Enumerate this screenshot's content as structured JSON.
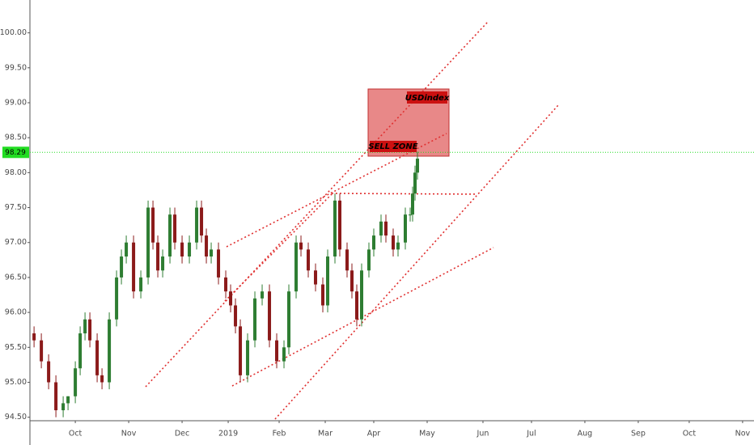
{
  "chart_data": {
    "type": "candlestick",
    "annotations": [
      "USDindex",
      "SELL ZONE"
    ],
    "price_line": 98.29,
    "xlim": [
      -18.7,
      279.7
    ],
    "xticks": [
      {
        "value": 0,
        "label": "Oct"
      },
      {
        "value": 22,
        "label": "Nov"
      },
      {
        "value": 44,
        "label": "Dec"
      },
      {
        "value": 63,
        "label": "2019"
      },
      {
        "value": 84,
        "label": "Feb"
      },
      {
        "value": 103,
        "label": "Mar"
      },
      {
        "value": 123,
        "label": "Apr"
      },
      {
        "value": 145,
        "label": "May"
      },
      {
        "value": 168,
        "label": "Jun"
      },
      {
        "value": 188,
        "label": "Jul"
      },
      {
        "value": 210,
        "label": "Aug"
      },
      {
        "value": 232,
        "label": "Sep"
      },
      {
        "value": 253,
        "label": "Oct"
      },
      {
        "value": 275,
        "label": "Nov"
      }
    ],
    "ylim": [
      94.45,
      100.47
    ],
    "yticks": [
      {
        "value": 94.5,
        "label": "94.50"
      },
      {
        "value": 95,
        "label": "95.00"
      },
      {
        "value": 95.5,
        "label": "95.50"
      },
      {
        "value": 96,
        "label": "96.00"
      },
      {
        "value": 96.5,
        "label": "96.50"
      },
      {
        "value": 97,
        "label": "97.00"
      },
      {
        "value": 97.5,
        "label": "97.50"
      },
      {
        "value": 98,
        "label": "98.00"
      },
      {
        "value": 98.5,
        "label": "98.50"
      },
      {
        "value": 99,
        "label": "99.00"
      },
      {
        "value": 99.5,
        "label": "99.50"
      },
      {
        "value": 100,
        "label": "100.00"
      }
    ],
    "grid": false,
    "up_color": "#2e7d32",
    "down_color": "#8b1a1a",
    "price_line_color": "#22dd22",
    "zone_color": "#e06060",
    "x": [
      -17,
      -14,
      -11,
      -8,
      -5,
      -3,
      0,
      2,
      4,
      6,
      9,
      11,
      14,
      17,
      19,
      21,
      24,
      27,
      30,
      32,
      34,
      36,
      39,
      41,
      44,
      47,
      50,
      52,
      54,
      56,
      59,
      62,
      64,
      66,
      68,
      71,
      74,
      77,
      80,
      83,
      86,
      88,
      91,
      93,
      96,
      99,
      102,
      104,
      107,
      109,
      112,
      114,
      116,
      118,
      121,
      123,
      126,
      128,
      131,
      133,
      136,
      138,
      139,
      140,
      141
    ],
    "open": [
      95.7,
      95.6,
      95.3,
      95.0,
      94.6,
      94.7,
      94.8,
      95.2,
      95.7,
      95.9,
      95.6,
      95.1,
      95.0,
      95.9,
      96.5,
      96.8,
      97.0,
      96.3,
      96.5,
      97.5,
      97.0,
      96.6,
      96.8,
      97.4,
      97.0,
      96.8,
      97.0,
      97.5,
      97.1,
      96.8,
      96.9,
      96.5,
      96.3,
      96.1,
      95.8,
      95.1,
      95.6,
      96.2,
      96.3,
      95.6,
      95.3,
      95.5,
      96.3,
      97.0,
      96.9,
      96.6,
      96.4,
      96.1,
      96.8,
      97.6,
      96.9,
      96.6,
      96.3,
      95.9,
      96.6,
      96.9,
      97.1,
      97.3,
      97.1,
      96.9,
      97.0,
      97.4,
      97.4,
      97.7,
      98.0
    ],
    "high": [
      95.8,
      95.7,
      95.4,
      95.1,
      94.8,
      94.8,
      95.3,
      95.8,
      96.0,
      96.0,
      95.7,
      95.2,
      96.0,
      96.6,
      96.9,
      97.1,
      97.1,
      96.6,
      97.6,
      97.6,
      97.1,
      96.9,
      97.5,
      97.5,
      97.1,
      97.1,
      97.6,
      97.6,
      97.2,
      97.0,
      97.0,
      96.6,
      96.4,
      96.2,
      95.9,
      95.7,
      96.3,
      96.4,
      96.4,
      95.7,
      95.6,
      96.4,
      97.1,
      97.1,
      97.0,
      96.7,
      96.5,
      96.9,
      97.7,
      97.7,
      97.0,
      96.7,
      96.4,
      96.7,
      97.0,
      97.2,
      97.4,
      97.4,
      97.2,
      97.1,
      97.5,
      97.5,
      97.8,
      98.1,
      98.3
    ],
    "low": [
      95.5,
      95.2,
      94.9,
      94.5,
      94.5,
      94.6,
      94.7,
      95.1,
      95.6,
      95.5,
      95.0,
      94.9,
      94.9,
      95.8,
      96.4,
      96.7,
      96.2,
      96.2,
      96.4,
      96.9,
      96.5,
      96.5,
      96.7,
      96.9,
      96.7,
      96.7,
      96.9,
      97.0,
      96.7,
      96.7,
      96.4,
      96.2,
      96.0,
      95.7,
      95.0,
      95.0,
      95.5,
      96.1,
      95.5,
      95.2,
      95.2,
      95.4,
      96.2,
      96.8,
      96.5,
      96.3,
      96.0,
      96.0,
      96.7,
      96.8,
      96.5,
      96.2,
      95.8,
      95.8,
      96.5,
      96.8,
      97.0,
      97.0,
      96.8,
      96.8,
      96.9,
      97.3,
      97.3,
      97.6,
      97.9
    ],
    "close": [
      95.6,
      95.3,
      95.0,
      94.6,
      94.7,
      94.8,
      95.2,
      95.7,
      95.9,
      95.6,
      95.1,
      95.0,
      95.9,
      96.5,
      96.8,
      97.0,
      96.3,
      96.5,
      97.5,
      97.0,
      96.6,
      96.8,
      97.4,
      97.0,
      96.8,
      97.0,
      97.5,
      97.1,
      96.8,
      96.9,
      96.5,
      96.3,
      96.1,
      95.8,
      95.1,
      95.6,
      96.2,
      96.3,
      95.6,
      95.3,
      95.5,
      96.3,
      97.0,
      96.9,
      96.6,
      96.4,
      96.1,
      96.8,
      97.6,
      96.9,
      96.6,
      96.3,
      95.9,
      96.6,
      96.9,
      97.1,
      97.3,
      97.1,
      96.9,
      97.0,
      97.4,
      97.4,
      97.7,
      98.0,
      98.2
    ]
  }
}
